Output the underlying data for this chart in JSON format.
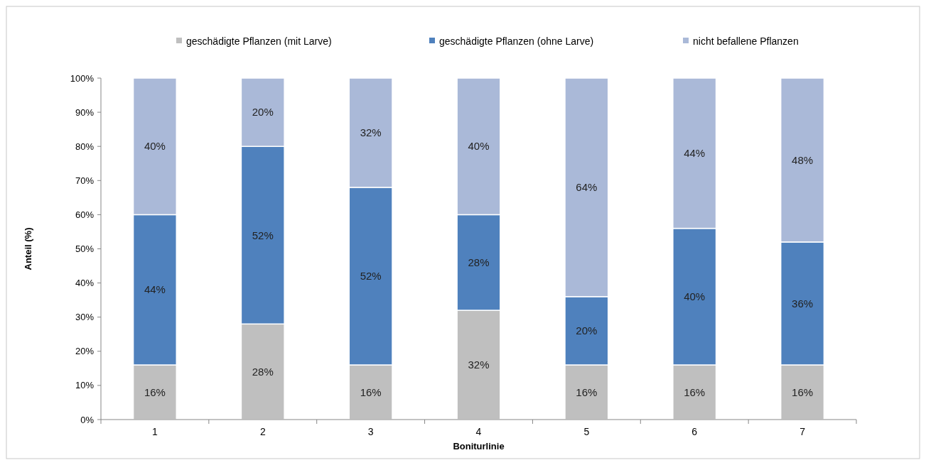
{
  "chart_data": {
    "type": "bar",
    "stacked": true,
    "xlabel": "Boniturlinie",
    "ylabel": "Anteil (%)",
    "categories": [
      "1",
      "2",
      "3",
      "4",
      "5",
      "6",
      "7"
    ],
    "series": [
      {
        "name": "geschädigte Pflanzen (mit Larve)",
        "color": "#bfbfbf",
        "values": [
          16,
          28,
          16,
          32,
          16,
          16,
          16
        ],
        "value_labels": [
          "16%",
          "28%",
          "16%",
          "32%",
          "16%",
          "16%",
          "16%"
        ]
      },
      {
        "name": "geschädigte Pflanzen (ohne Larve)",
        "color": "#4f81bd",
        "values": [
          44,
          52,
          52,
          28,
          20,
          40,
          36
        ],
        "value_labels": [
          "44%",
          "52%",
          "52%",
          "28%",
          "20%",
          "40%",
          "36%"
        ]
      },
      {
        "name": "nicht befallene Pflanzen",
        "color": "#aab9d8",
        "values": [
          40,
          20,
          32,
          40,
          64,
          44,
          48
        ],
        "value_labels": [
          "40%",
          "20%",
          "32%",
          "40%",
          "64%",
          "44%",
          "48%"
        ]
      }
    ],
    "ylim": [
      0,
      100
    ],
    "yticks": [
      {
        "value": 0,
        "label": "0%"
      },
      {
        "value": 10,
        "label": "10%"
      },
      {
        "value": 20,
        "label": "20%"
      },
      {
        "value": 30,
        "label": "30%"
      },
      {
        "value": 40,
        "label": "40%"
      },
      {
        "value": 50,
        "label": "50%"
      },
      {
        "value": 60,
        "label": "60%"
      },
      {
        "value": 70,
        "label": "70%"
      },
      {
        "value": 80,
        "label": "80%"
      },
      {
        "value": 90,
        "label": "90%"
      },
      {
        "value": 100,
        "label": "100%"
      }
    ],
    "grid": false,
    "legend": "top"
  }
}
